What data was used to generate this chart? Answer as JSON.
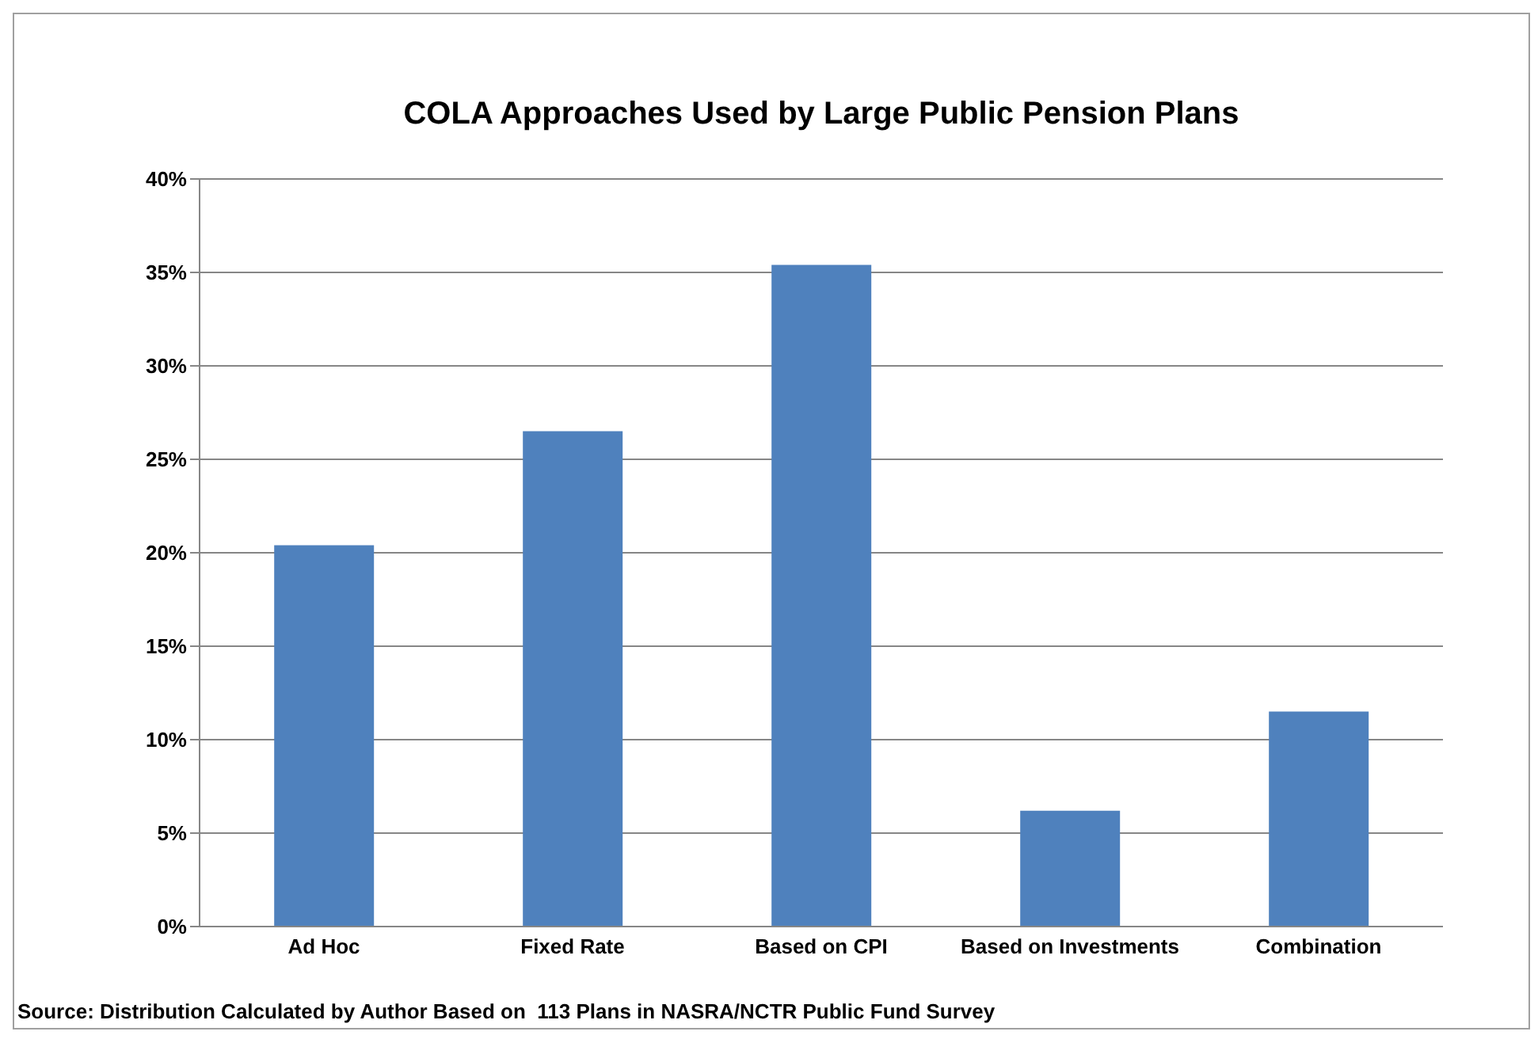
{
  "chart_data": {
    "type": "bar",
    "title": "COLA Approaches Used by Large Public Pension Plans",
    "categories": [
      "Ad Hoc",
      "Fixed Rate",
      "Based on CPI",
      "Based on Investments",
      "Combination"
    ],
    "values": [
      20.4,
      26.5,
      35.4,
      6.2,
      11.5
    ],
    "color": "#4f81bd",
    "ylim": [
      0,
      40
    ],
    "yticks": [
      {
        "value": 0,
        "label": "0%"
      },
      {
        "value": 5,
        "label": "5%"
      },
      {
        "value": 10,
        "label": "10%"
      },
      {
        "value": 15,
        "label": "15%"
      },
      {
        "value": 20,
        "label": "20%"
      },
      {
        "value": 25,
        "label": "25%"
      },
      {
        "value": 30,
        "label": "30%"
      },
      {
        "value": 35,
        "label": "35%"
      },
      {
        "value": 40,
        "label": "40%"
      }
    ],
    "grid": "y",
    "annotations": [
      "Source: Distribution Calculated by Author Based on  113 Plans in NASRA/NCTR Public Fund Survey"
    ]
  }
}
